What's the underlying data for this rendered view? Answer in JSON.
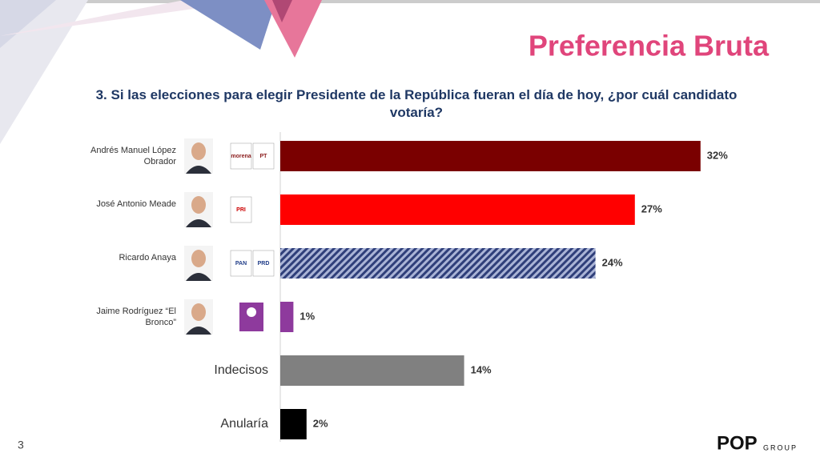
{
  "chart_data": {
    "type": "bar",
    "orientation": "horizontal",
    "title": "Preferencia Bruta",
    "subtitle": "3. Si las elecciones para elegir Presidente de la República fueran el día de hoy, ¿por cuál candidato votaría?",
    "categories": [
      "Andrés Manuel López Obrador",
      "José Antonio Meade",
      "Ricardo Anaya",
      "Jaime Rodríguez “El Bronco”",
      "Indecisos",
      "Anularía"
    ],
    "values": [
      32,
      27,
      24,
      1,
      14,
      2
    ],
    "value_labels": [
      "32%",
      "27%",
      "24%",
      "1%",
      "14%",
      "2%"
    ],
    "colors": [
      "#7a0000",
      "#ff0000",
      "#7f8db8",
      "#8e3a9d",
      "#808080",
      "#000000"
    ],
    "hatched": [
      false,
      false,
      true,
      false,
      false,
      false
    ],
    "xlim": [
      0,
      35
    ],
    "party_logos": [
      [
        "morena",
        "PT"
      ],
      [
        "PRI"
      ],
      [
        "PAN",
        "PRD"
      ]
    ],
    "page_number": "3",
    "brand": [
      "POP",
      "GROUP"
    ]
  }
}
